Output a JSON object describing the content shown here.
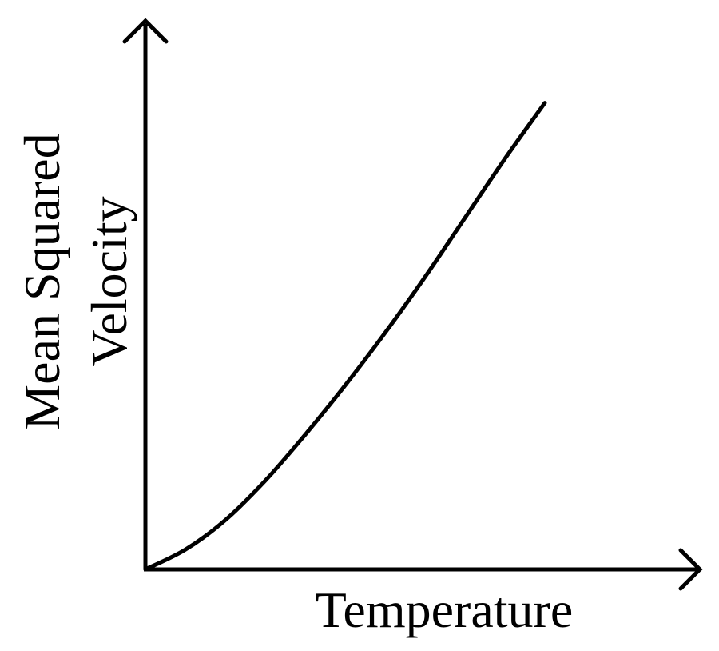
{
  "chart_data": {
    "type": "line",
    "title": "",
    "xlabel": "Temperature",
    "ylabel_lines": [
      "Mean Squared",
      "Velocity"
    ],
    "ticks": "none",
    "grid": false,
    "legend": "none",
    "series": [
      {
        "x": [
          0,
          1,
          2,
          3,
          4,
          5,
          6,
          7,
          8,
          9,
          10
        ],
        "y": [
          0,
          0.6,
          1.5,
          2.7,
          4.1,
          5.6,
          7.2,
          8.9,
          10.7,
          12.5,
          14.2
        ]
      }
    ],
    "xlim": [
      0,
      13.8
    ],
    "ylim": [
      0,
      16.6
    ],
    "line_color": "#000000"
  }
}
